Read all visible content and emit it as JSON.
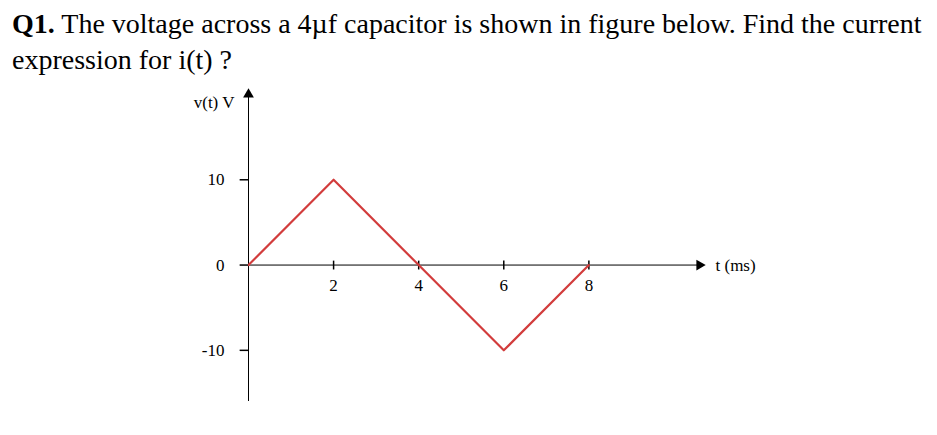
{
  "question": {
    "number": "Q1.",
    "text": "The voltage across a 4µf capacitor is shown in figure below. Find the current expression for i(t) ?"
  },
  "chart_data": {
    "type": "line",
    "x_label": "t (ms)",
    "y_label": "v(t) V",
    "x": [
      0,
      2,
      4,
      6,
      8
    ],
    "values": [
      0,
      10,
      0,
      -10,
      0
    ],
    "color": "#d23c3c",
    "xlim": [
      0,
      10.6
    ],
    "ylim": [
      -16,
      20
    ],
    "xticks": [
      2,
      4,
      6,
      8
    ],
    "yticks": [
      -10,
      0,
      10
    ],
    "grid": false
  }
}
